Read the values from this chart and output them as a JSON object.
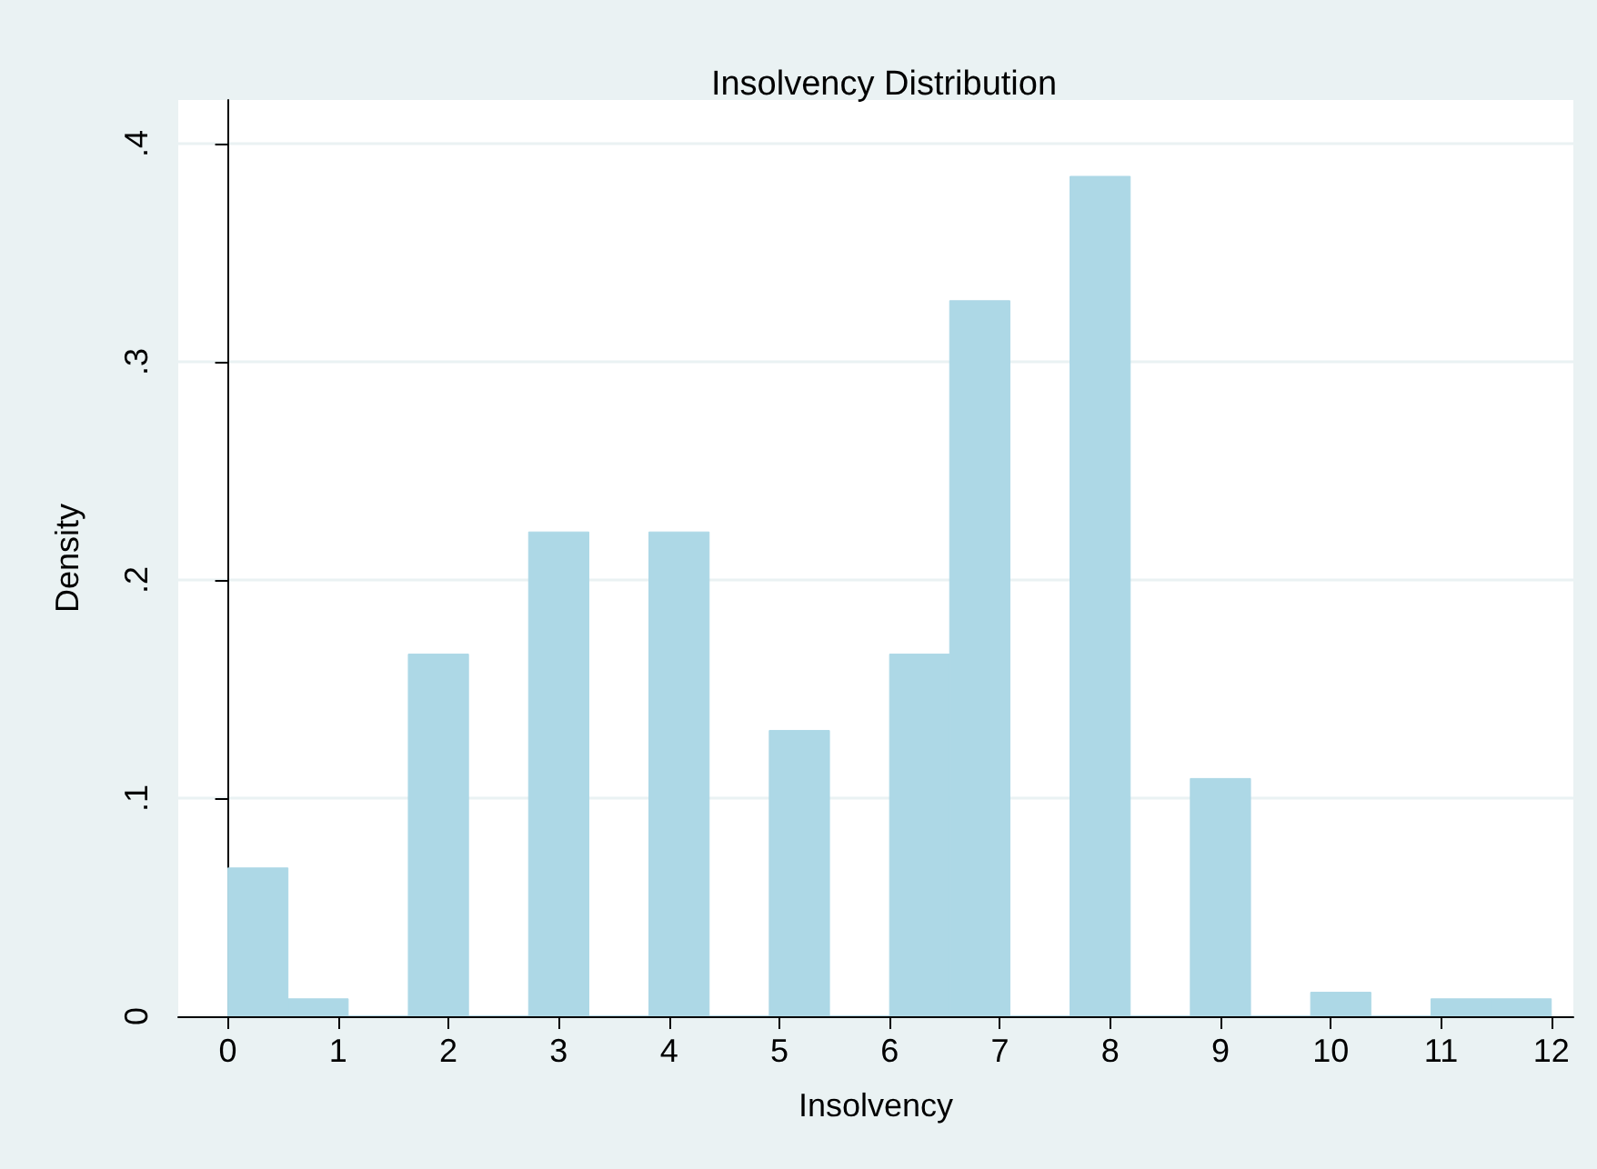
{
  "chart_data": {
    "type": "histogram",
    "title": "Insolvency Distribution",
    "xlabel": "Insolvency",
    "ylabel": "Density",
    "bins": [
      0,
      0.545,
      1.091,
      1.636,
      2.182,
      2.727,
      3.273,
      3.818,
      4.364,
      4.909,
      5.455,
      6,
      6.545,
      7.091,
      7.636,
      8.182,
      8.727,
      9.273,
      9.818,
      10.364,
      10.909,
      11.455,
      12
    ],
    "values": [
      0.068,
      0.008,
      0,
      0.166,
      0,
      0.222,
      0,
      0.222,
      0,
      0.131,
      0,
      0.166,
      0.328,
      0,
      0.385,
      0,
      0.109,
      0,
      0.011,
      0,
      0.008,
      0.008
    ],
    "color": "#add8e6",
    "xlim": [
      -0.45,
      12.2
    ],
    "xticks": [
      0,
      1,
      2,
      3,
      4,
      5,
      6,
      7,
      8,
      9,
      10,
      11,
      12
    ],
    "ylim": [
      0,
      0.42
    ],
    "yticks": [
      {
        "value": 0,
        "label": "0"
      },
      {
        "value": 0.1,
        "label": ".1"
      },
      {
        "value": 0.2,
        "label": ".2"
      },
      {
        "value": 0.3,
        "label": ".3"
      },
      {
        "value": 0.4,
        "label": ".4"
      }
    ],
    "grid": "y"
  }
}
